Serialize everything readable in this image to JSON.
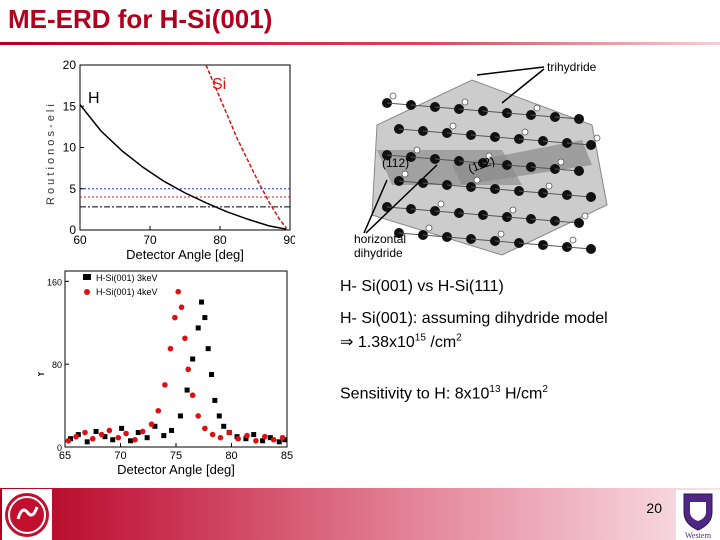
{
  "title": "ME-ERD for H-Si(001)",
  "page_number": "20",
  "bullets": {
    "line1": "H- Si(001) vs H-Si(111)",
    "line2": "H- Si(001): assuming dihydride model",
    "line3_prefix": "⇒ 1.38x10",
    "line3_exp": "15",
    "line3_suffix": " /cm",
    "line3_exp2": "2",
    "line4_prefix": "Sensitivity to H: 8x10",
    "line4_exp": "13",
    "line4_suffix": " H/cm",
    "line4_exp2": "2"
  },
  "diagram": {
    "label_trihydride": "trihydride",
    "label_horizontal": "horizontal",
    "label_dihydride": "dihydride",
    "label_112a": "(112)",
    "label_112b": "(112)"
  },
  "logos": {
    "right_text": "Western"
  },
  "chart_data": [
    {
      "type": "line",
      "xlabel": "Detector Angle [deg]",
      "ylabel": "R",
      "ylabel_garbled": "R o u t i o n o s - e l i",
      "xticks": [
        "60",
        "70",
        "80",
        "90"
      ],
      "yticks": [
        "0",
        "5",
        "10",
        "15",
        "20"
      ],
      "xlim": [
        60,
        90
      ],
      "ylim": [
        0,
        20
      ],
      "series": [
        {
          "name": "H",
          "color": "#000000",
          "x": [
            60,
            63,
            66,
            69,
            72,
            75,
            78,
            81,
            84,
            87,
            89.5
          ],
          "y": [
            15.2,
            12.0,
            9.6,
            7.6,
            5.9,
            4.5,
            3.3,
            2.2,
            1.3,
            0.5,
            0.1
          ]
        },
        {
          "name": "Si",
          "color": "#dd1111",
          "x": [
            78,
            79.5,
            81,
            82.5,
            84,
            85.5,
            87,
            88.5,
            89.5
          ],
          "y": [
            20,
            17,
            14,
            11,
            8.4,
            5.8,
            3.4,
            1.3,
            0.2
          ]
        }
      ],
      "hlines": [
        {
          "y": 5.0,
          "color": "#2233cc",
          "style": "dotted"
        },
        {
          "y": 4.0,
          "color": "#cc2222",
          "style": "dotted"
        },
        {
          "y": 2.8,
          "color": "#000000",
          "style": "dashdot"
        }
      ]
    },
    {
      "type": "scatter",
      "xlabel": "Detector Angle [deg]",
      "ylabel": "Y",
      "xticks": [
        "65",
        "70",
        "75",
        "80",
        "85"
      ],
      "yticks": [
        "0",
        "80",
        "160"
      ],
      "xlim": [
        65,
        85
      ],
      "ylim": [
        0,
        170
      ],
      "legend": [
        "H-Si(001) 3keV",
        "H-Si(001) 4keV"
      ],
      "series": [
        {
          "name": "H-Si(001) 3keV",
          "color": "#000000",
          "x": [
            65.5,
            66.2,
            67.0,
            67.8,
            68.6,
            69.3,
            70.1,
            70.9,
            71.6,
            72.4,
            73.1,
            73.9,
            74.6,
            75.4,
            76.0,
            76.5,
            77.0,
            77.3,
            77.6,
            77.9,
            78.2,
            78.5,
            78.9,
            79.3,
            79.8,
            80.5,
            81.3,
            82.0,
            82.8,
            83.5,
            84.3,
            84.8
          ],
          "y": [
            8,
            12,
            5,
            15,
            10,
            7,
            18,
            6,
            14,
            9,
            20,
            11,
            16,
            30,
            55,
            85,
            115,
            140,
            125,
            95,
            70,
            45,
            30,
            20,
            14,
            10,
            8,
            12,
            6,
            9,
            5,
            7
          ]
        },
        {
          "name": "H-Si(001) 4keV",
          "color": "#dd1111",
          "x": [
            65.3,
            66.0,
            66.8,
            67.5,
            68.3,
            69.0,
            69.8,
            70.5,
            71.3,
            72.0,
            72.8,
            73.4,
            74.0,
            74.5,
            74.9,
            75.2,
            75.5,
            75.8,
            76.1,
            76.5,
            77.0,
            77.6,
            78.3,
            79.0,
            79.8,
            80.6,
            81.4,
            82.2,
            83.0,
            83.8,
            84.6
          ],
          "y": [
            6,
            10,
            14,
            8,
            12,
            16,
            9,
            13,
            7,
            15,
            22,
            35,
            60,
            95,
            125,
            150,
            135,
            105,
            75,
            50,
            30,
            18,
            12,
            9,
            14,
            8,
            11,
            6,
            10,
            7,
            9
          ]
        }
      ]
    }
  ]
}
